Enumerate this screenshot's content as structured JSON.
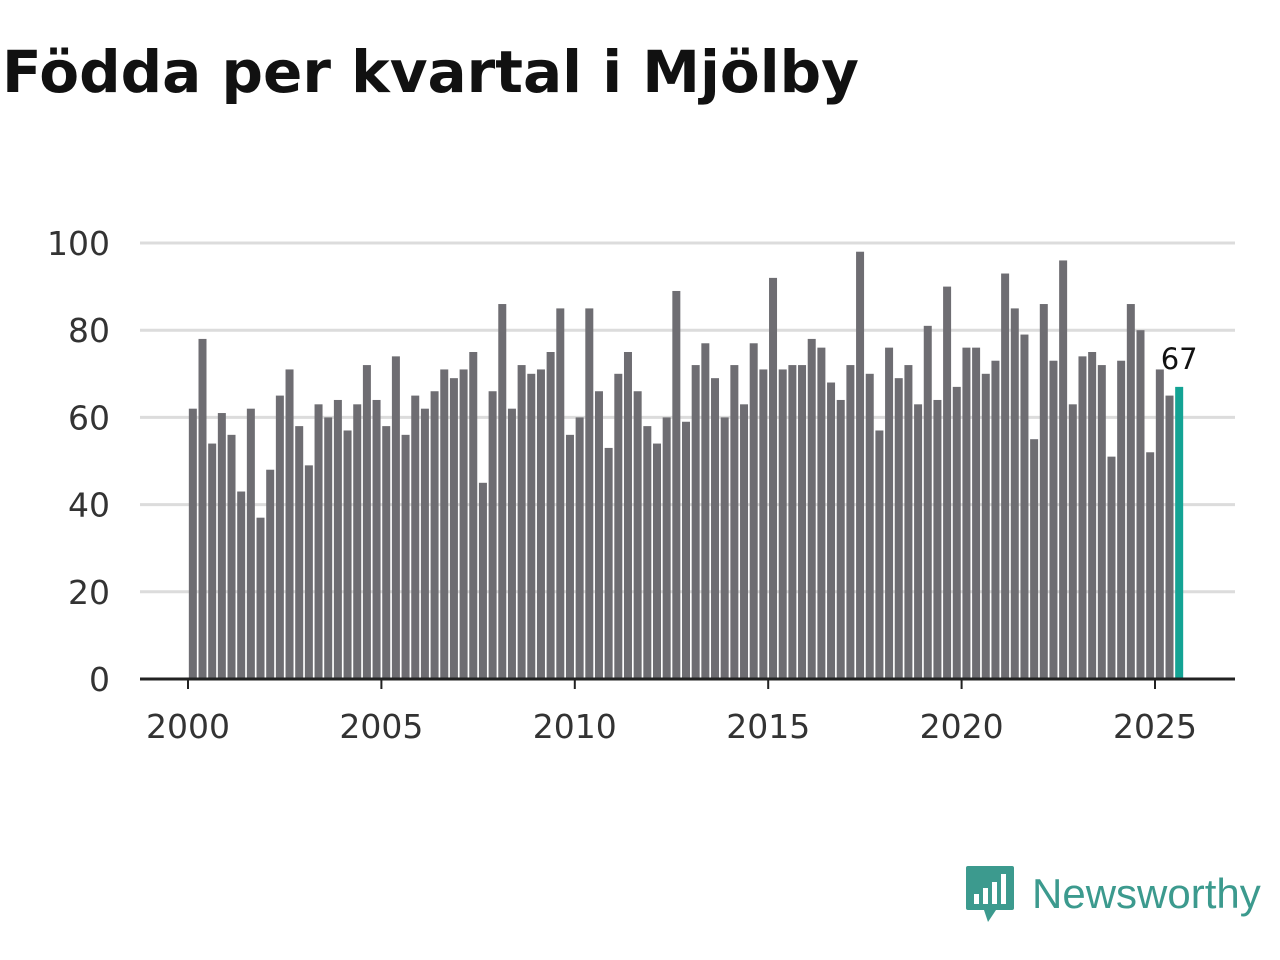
{
  "title": "Födda per kvartal i Mjölby",
  "brand": {
    "name": "Newsworthy",
    "color": "#3c9a8e"
  },
  "chart_data": {
    "type": "bar",
    "title": "Födda per kvartal i Mjölby",
    "xlabel": "",
    "ylabel": "",
    "ylim": [
      0,
      100
    ],
    "yticks": [
      0,
      20,
      40,
      60,
      80,
      100
    ],
    "xticks": [
      2000,
      2005,
      2010,
      2015,
      2020,
      2025
    ],
    "xlim": [
      1999.25,
      2026.9
    ],
    "grid": true,
    "start": {
      "year": 2000,
      "quarter": 1
    },
    "bar_color": "#6e6d72",
    "highlight_color": "#13a394",
    "highlight_label": "67",
    "values": [
      62,
      78,
      54,
      61,
      56,
      43,
      62,
      37,
      48,
      65,
      71,
      58,
      49,
      63,
      60,
      64,
      57,
      63,
      72,
      64,
      58,
      74,
      56,
      65,
      62,
      66,
      71,
      69,
      71,
      75,
      45,
      66,
      86,
      62,
      72,
      70,
      71,
      75,
      85,
      56,
      60,
      85,
      66,
      53,
      70,
      75,
      66,
      58,
      54,
      60,
      89,
      59,
      72,
      77,
      69,
      60,
      72,
      63,
      77,
      71,
      92,
      71,
      72,
      72,
      78,
      76,
      68,
      64,
      72,
      98,
      70,
      57,
      76,
      69,
      72,
      63,
      81,
      64,
      90,
      67,
      76,
      76,
      70,
      73,
      93,
      85,
      79,
      55,
      86,
      73,
      96,
      63,
      74,
      75,
      72,
      51,
      73,
      86,
      80,
      52,
      71,
      65,
      67
    ]
  }
}
